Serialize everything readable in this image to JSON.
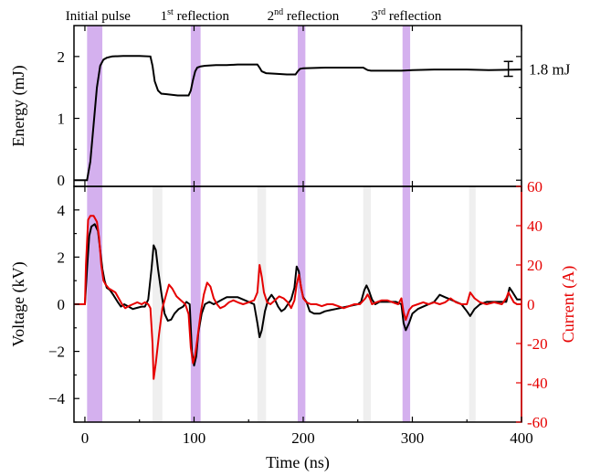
{
  "chart_data": [
    {
      "type": "line",
      "panel": "top",
      "x_domain": [
        0,
        400
      ],
      "ylabel": "Energy (mJ)",
      "ylim": [
        -0.1,
        2.5
      ],
      "yticks": [
        0,
        1,
        2
      ],
      "series": [
        {
          "color": "#000000",
          "x": [
            -10,
            2,
            5,
            8,
            11,
            14,
            17,
            20,
            25,
            35,
            50,
            60,
            62,
            64,
            67,
            70,
            75,
            85,
            95,
            97,
            99,
            101,
            103,
            106,
            110,
            120,
            130,
            140,
            150,
            158,
            160,
            162,
            166,
            175,
            185,
            193,
            195,
            197,
            200,
            220,
            240,
            255,
            257,
            259,
            262,
            275,
            290,
            300,
            320,
            350,
            370,
            400
          ],
          "values": [
            0,
            0,
            0.3,
            0.9,
            1.5,
            1.85,
            1.95,
            1.98,
            2.0,
            2.01,
            2.01,
            2.0,
            1.85,
            1.6,
            1.45,
            1.4,
            1.39,
            1.37,
            1.37,
            1.45,
            1.62,
            1.76,
            1.82,
            1.84,
            1.85,
            1.86,
            1.86,
            1.87,
            1.87,
            1.87,
            1.82,
            1.76,
            1.73,
            1.72,
            1.71,
            1.71,
            1.76,
            1.8,
            1.81,
            1.82,
            1.82,
            1.82,
            1.8,
            1.78,
            1.77,
            1.77,
            1.77,
            1.78,
            1.79,
            1.79,
            1.78,
            1.79
          ]
        }
      ],
      "error_bar": {
        "x": 388,
        "y": 1.8,
        "err": 0.12
      },
      "annotation": "1.8 mJ"
    },
    {
      "type": "line",
      "panel": "bottom",
      "xlabel": "Time (ns)",
      "xlim": [
        -10,
        400
      ],
      "xticks": [
        0,
        100,
        200,
        300,
        400
      ],
      "ylabel": "Voltage (kV)",
      "ylim": [
        -5,
        5
      ],
      "yticks": [
        -4,
        -2,
        0,
        2,
        4
      ],
      "ylabel_right": "Current (A)",
      "ylim_right": [
        -60,
        60
      ],
      "yticks_right": [
        -60,
        -40,
        -20,
        0,
        20,
        40,
        60
      ],
      "series": [
        {
          "color": "#000000",
          "axis": "left",
          "x": [
            -10,
            0,
            2,
            4,
            6,
            9,
            12,
            14,
            16,
            18,
            20,
            23,
            26,
            30,
            33,
            36,
            40,
            44,
            48,
            52,
            55,
            58,
            61,
            63,
            65,
            67,
            70,
            73,
            76,
            79,
            82,
            86,
            90,
            93,
            96,
            98,
            100,
            102,
            104,
            107,
            110,
            114,
            118,
            122,
            126,
            130,
            135,
            140,
            145,
            150,
            155,
            158,
            160,
            162,
            165,
            168,
            171,
            174,
            177,
            180,
            183,
            186,
            189,
            192,
            194,
            196,
            198,
            200,
            203,
            206,
            210,
            215,
            220,
            225,
            230,
            235,
            240,
            245,
            250,
            253,
            256,
            258,
            260,
            263,
            266,
            270,
            275,
            280,
            285,
            290,
            292,
            294,
            297,
            300,
            305,
            310,
            315,
            320,
            325,
            330,
            335,
            340,
            345,
            350,
            353,
            357,
            362,
            368,
            375,
            382,
            386,
            389,
            392,
            396,
            400
          ],
          "values": [
            0,
            0,
            1.5,
            2.9,
            3.3,
            3.4,
            3.1,
            2.3,
            1.5,
            1.0,
            0.7,
            0.6,
            0.4,
            0.1,
            -0.1,
            0.0,
            -0.1,
            -0.2,
            -0.15,
            -0.1,
            -0.1,
            0.2,
            1.5,
            2.5,
            2.3,
            1.5,
            0.5,
            -0.4,
            -0.7,
            -0.65,
            -0.4,
            -0.2,
            -0.1,
            0.1,
            0.0,
            -2.0,
            -2.6,
            -2.2,
            -1.2,
            -0.4,
            0.0,
            0.1,
            0.0,
            0.1,
            0.2,
            0.3,
            0.3,
            0.3,
            0.2,
            0.1,
            0.0,
            -0.8,
            -1.4,
            -1.1,
            -0.3,
            0.2,
            0.4,
            0.2,
            -0.1,
            -0.3,
            -0.2,
            0.0,
            0.2,
            0.7,
            1.6,
            1.4,
            0.7,
            0.3,
            0.1,
            -0.3,
            -0.4,
            -0.4,
            -0.3,
            -0.25,
            -0.2,
            -0.15,
            -0.1,
            -0.05,
            0.0,
            0.1,
            0.6,
            0.8,
            0.6,
            0.2,
            0.0,
            0.1,
            0.1,
            0.1,
            0.1,
            0.0,
            -0.8,
            -1.1,
            -0.8,
            -0.4,
            -0.2,
            -0.1,
            0.0,
            0.1,
            0.4,
            0.3,
            0.2,
            0.1,
            0.0,
            -0.3,
            -0.5,
            -0.2,
            0.0,
            0.1,
            0.1,
            0.1,
            0.1,
            0.7,
            0.5,
            0.2,
            0.2
          ]
        },
        {
          "color": "#e60000",
          "axis": "right",
          "x": [
            -10,
            0,
            1,
            3,
            5,
            8,
            11,
            13,
            15,
            17,
            19,
            22,
            25,
            28,
            31,
            34,
            37,
            40,
            44,
            48,
            52,
            55,
            58,
            60,
            62,
            63,
            65,
            68,
            71,
            74,
            77,
            80,
            84,
            88,
            92,
            95,
            97,
            99,
            101,
            103,
            106,
            109,
            112,
            115,
            118,
            121,
            124,
            128,
            132,
            136,
            140,
            145,
            150,
            155,
            158,
            160,
            162,
            164,
            167,
            170,
            174,
            178,
            182,
            186,
            189,
            192,
            194,
            196,
            198,
            200,
            203,
            207,
            212,
            217,
            222,
            227,
            232,
            237,
            242,
            247,
            252,
            257,
            259,
            261,
            263,
            267,
            272,
            277,
            282,
            287,
            290,
            292,
            294,
            297,
            300,
            305,
            310,
            315,
            320,
            325,
            330,
            335,
            340,
            345,
            350,
            353,
            357,
            362,
            368,
            375,
            382,
            386,
            388,
            390,
            393,
            396,
            400
          ],
          "values": [
            0,
            0,
            20,
            43,
            45,
            45,
            42,
            34,
            20,
            12,
            10,
            8,
            7,
            6,
            3,
            0,
            -2,
            -1,
            0,
            1,
            0,
            1,
            0,
            -2,
            -20,
            -38,
            -30,
            -15,
            -2,
            4,
            10,
            8,
            4,
            2,
            0,
            -5,
            -22,
            -30,
            -26,
            -18,
            -5,
            5,
            11,
            9,
            3,
            0,
            -2,
            -1,
            1,
            2,
            1,
            0,
            1,
            2,
            6,
            20,
            14,
            6,
            1,
            0,
            2,
            4,
            3,
            1,
            -2,
            2,
            10,
            15,
            9,
            3,
            1,
            0,
            0,
            -1,
            0,
            0,
            -1,
            -2,
            -1,
            0,
            0,
            3,
            5,
            3,
            0,
            1,
            2,
            2,
            1,
            0,
            3,
            -4,
            -8,
            -3,
            -1,
            0,
            1,
            0,
            1,
            0,
            1,
            3,
            1,
            0,
            0,
            6,
            3,
            1,
            0,
            1,
            0,
            3,
            6,
            4,
            1,
            0,
            0
          ]
        }
      ]
    }
  ],
  "highlight_bands": [
    {
      "x0": 2,
      "x1": 16,
      "label": "Initial pulse"
    },
    {
      "x0": 97,
      "x1": 106,
      "label_base": "1",
      "label_sup": "st",
      "label_rest": " reflection"
    },
    {
      "x0": 195,
      "x1": 202,
      "label_base": "2",
      "label_sup": "nd",
      "label_rest": " reflection"
    },
    {
      "x0": 291,
      "x1": 298,
      "label_base": "3",
      "label_sup": "rd",
      "label_rest": " reflection"
    }
  ],
  "faint_bands": [
    {
      "x0": 62,
      "x1": 71
    },
    {
      "x0": 158,
      "x1": 166
    },
    {
      "x0": 255,
      "x1": 262
    },
    {
      "x0": 352,
      "x1": 358
    }
  ],
  "colors": {
    "highlight": "#d4b0ee",
    "faint": "#efefef",
    "current": "#e60000",
    "axis": "#000000"
  }
}
